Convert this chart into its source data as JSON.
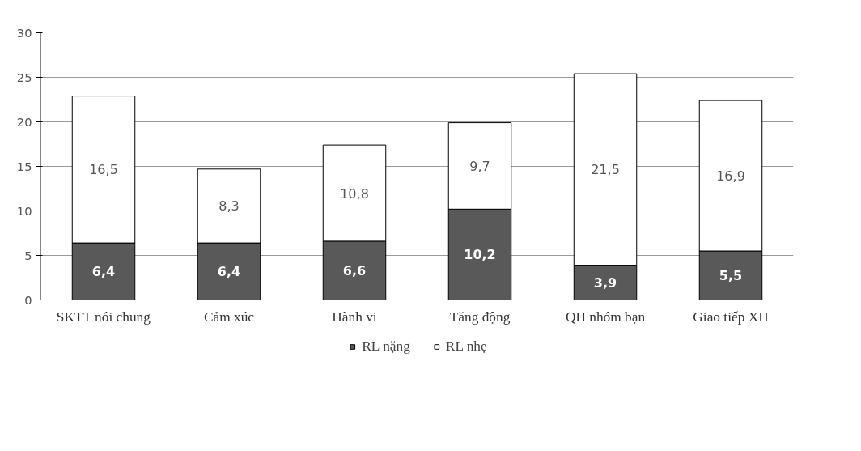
{
  "chart_data": {
    "type": "bar",
    "stacked": true,
    "categories": [
      "SKTT nói chung",
      "Cảm xúc",
      "Hành vi",
      "Tăng động",
      "QH nhóm bạn",
      "Giao tiếp XH"
    ],
    "series": [
      {
        "name": "RL nặng",
        "color": "#595959",
        "values": [
          6.4,
          6.4,
          6.6,
          10.2,
          3.9,
          5.5
        ],
        "value_labels": [
          "6,4",
          "6,4",
          "6,6",
          "10,2",
          "3,9",
          "5,5"
        ]
      },
      {
        "name": "RL nhẹ",
        "color": "#ffffff",
        "values": [
          16.5,
          8.3,
          10.8,
          9.7,
          21.5,
          16.9
        ],
        "value_labels": [
          "16,5",
          "8,3",
          "10,8",
          "9,7",
          "21,5",
          "16,9"
        ]
      }
    ],
    "ylim": [
      0,
      30
    ],
    "yticks": [
      0,
      5,
      10,
      15,
      20,
      25,
      30
    ],
    "grid": "y",
    "legend": "bottom"
  }
}
